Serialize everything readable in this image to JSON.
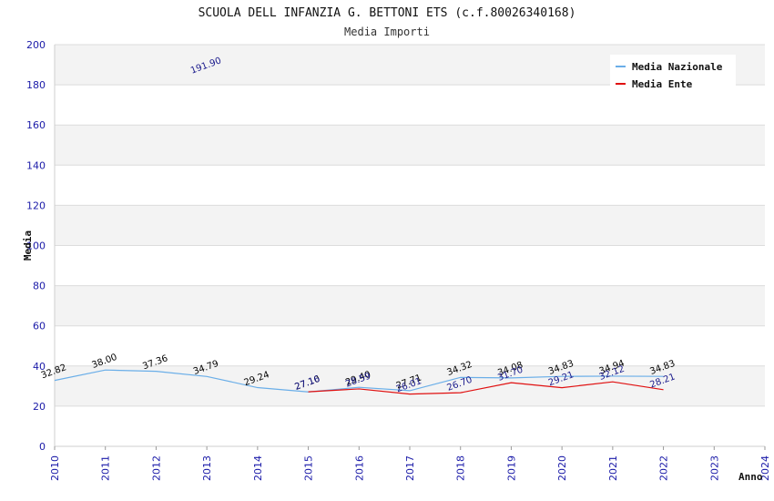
{
  "chart_data": {
    "type": "line",
    "title": "SCUOLA DELL INFANZIA G. BETTONI ETS (c.f.80026340168)",
    "subtitle": "Media Importi",
    "xlabel": "Anno",
    "ylabel": "Media",
    "ylim": [
      0,
      200
    ],
    "yticks": [
      0,
      20,
      40,
      60,
      80,
      100,
      120,
      140,
      160,
      180,
      200
    ],
    "categories": [
      "2010",
      "2011",
      "2012",
      "2013",
      "2014",
      "2015",
      "2016",
      "2017",
      "2018",
      "2019",
      "2020",
      "2021",
      "2022",
      "2023",
      "2024"
    ],
    "grid": true,
    "legend_position": "top-right",
    "series": [
      {
        "name": "Media Nazionale",
        "color": "#6aaee8",
        "label_color": "#000000",
        "values": [
          32.82,
          38.0,
          37.36,
          34.79,
          29.24,
          27.1,
          29.4,
          27.71,
          34.32,
          34.08,
          34.83,
          34.94,
          34.83,
          null,
          null
        ],
        "labels": [
          "32.82",
          "38.00",
          "37.36",
          "34.79",
          "29.24",
          "27.10",
          "29.40",
          "27.71",
          "34.32",
          "34.08",
          "34.83",
          "34.94",
          "34.83",
          "",
          ""
        ]
      },
      {
        "name": "Media Ente",
        "color": "#e01010",
        "label_color": "#1a1a8c",
        "values": [
          null,
          null,
          null,
          191.9,
          null,
          27.16,
          28.59,
          26.01,
          26.7,
          31.7,
          29.21,
          32.12,
          28.21,
          null,
          null
        ],
        "labels": [
          "",
          "",
          "",
          "191.90",
          "",
          "27.16",
          "28.59",
          "26.01",
          "26.70",
          "31.70",
          "29.21",
          "32.12",
          "28.21",
          "",
          ""
        ]
      }
    ]
  }
}
